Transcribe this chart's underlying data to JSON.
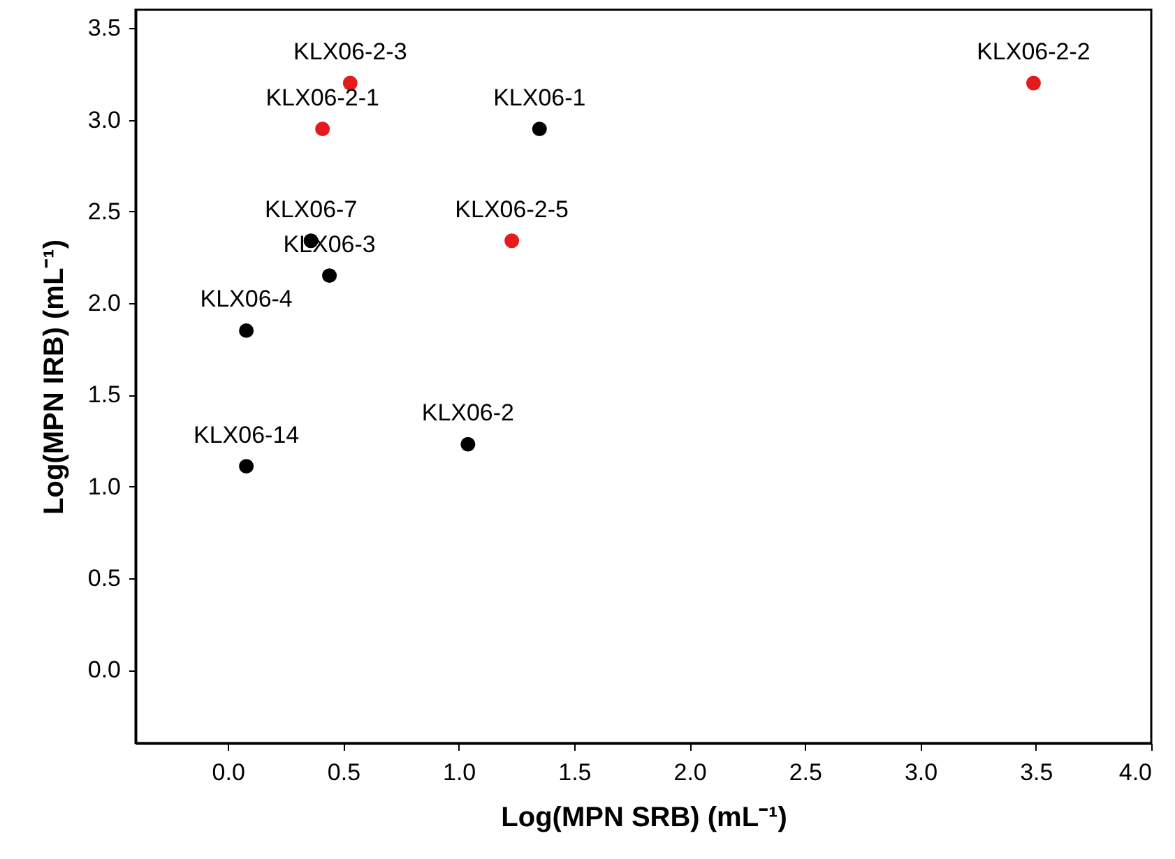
{
  "chart_data": {
    "type": "scatter",
    "xlabel": "Log(MPN SRB) (mL⁻¹)",
    "ylabel": "Log(MPN IRB) (mL⁻¹)",
    "series": [
      {
        "color": "#000000",
        "x": [
          1.35,
          0.36,
          0.44,
          0.08,
          0.08,
          1.04
        ],
        "values": [
          2.95,
          2.34,
          2.15,
          1.85,
          1.11,
          1.23
        ]
      },
      {
        "color": "#e41a1c",
        "x": [
          0.53,
          0.41,
          1.23,
          3.49
        ],
        "values": [
          3.2,
          2.95,
          2.34,
          3.2
        ]
      }
    ],
    "annotations": [
      {
        "text": "KLX06-1",
        "x": 1.35,
        "y": 2.95
      },
      {
        "text": "KLX06-7",
        "x": 0.36,
        "y": 2.34
      },
      {
        "text": "KLX06-3",
        "x": 0.44,
        "y": 2.15
      },
      {
        "text": "KLX06-4",
        "x": 0.08,
        "y": 1.85
      },
      {
        "text": "KLX06-14",
        "x": 0.08,
        "y": 1.11
      },
      {
        "text": "KLX06-2",
        "x": 1.04,
        "y": 1.23
      },
      {
        "text": "KLX06-2-3",
        "x": 0.53,
        "y": 3.2
      },
      {
        "text": "KLX06-2-1",
        "x": 0.41,
        "y": 2.95
      },
      {
        "text": "KLX06-2-5",
        "x": 1.23,
        "y": 2.34
      },
      {
        "text": "KLX06-2-2",
        "x": 3.49,
        "y": 3.2
      }
    ],
    "xlim": [
      -0.4,
      4.0
    ],
    "ylim": [
      -0.4,
      3.6
    ],
    "xticks": [
      {
        "value": 0,
        "label": "0.0"
      },
      0.5,
      {
        "value": 1,
        "label": "1.0"
      },
      1.5,
      {
        "value": 2,
        "label": "2.0"
      },
      2.5,
      {
        "value": 3,
        "label": "3.0"
      },
      3.5,
      {
        "value": 4,
        "label": "4.0"
      }
    ],
    "yticks": [
      {
        "value": 0,
        "label": "0.0"
      },
      0.5,
      {
        "value": 1,
        "label": "1.0"
      },
      1.5,
      {
        "value": 2,
        "label": "2.0"
      },
      2.5,
      {
        "value": 3,
        "label": "3.0"
      },
      3.5
    ],
    "marker": "circle",
    "grid": false
  }
}
